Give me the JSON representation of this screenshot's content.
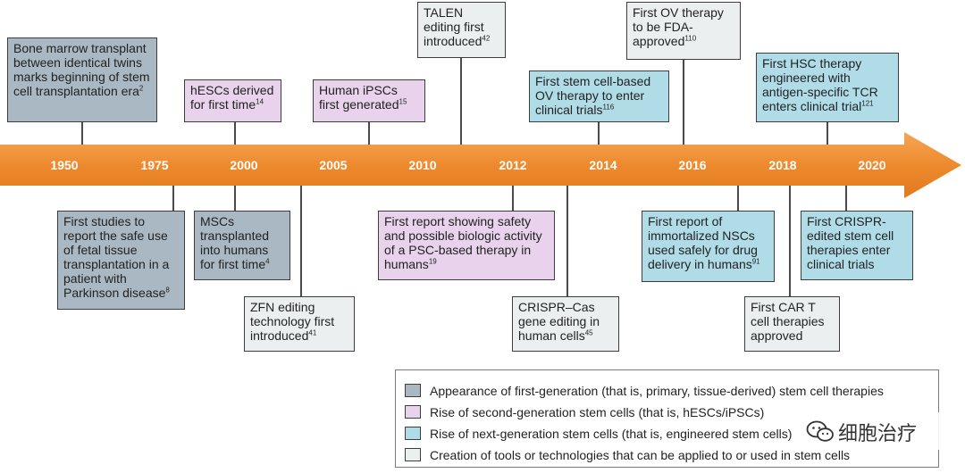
{
  "timeline": {
    "years": [
      "1950",
      "1975",
      "2000",
      "2005",
      "2010",
      "2012",
      "2014",
      "2016",
      "2018",
      "2020"
    ],
    "arrow_color": "#ee8a2e"
  },
  "events_above": [
    {
      "text": "Bone marrow transplant between identical twins marks beginning of stem cell transplantation era",
      "ref": "2",
      "category": "first-generation"
    },
    {
      "text": "hESCs derived for first time",
      "ref": "14",
      "category": "second-generation"
    },
    {
      "text": "Human iPSCs first generated",
      "ref": "15",
      "category": "second-generation"
    },
    {
      "text": "TALEN editing first introduced",
      "ref": "42",
      "category": "tools"
    },
    {
      "text": "First stem cell-based OV therapy to enter clinical trials",
      "ref": "116",
      "category": "next-generation"
    },
    {
      "text": "First OV therapy to be FDA-approved",
      "ref": "110",
      "category": "tools"
    },
    {
      "text": "First HSC therapy engineered with antigen-specific TCR enters clinical trial",
      "ref": "121",
      "category": "next-generation"
    }
  ],
  "events_below": [
    {
      "text": "First studies to report the safe use of fetal tissue transplantation in a patient with Parkinson disease",
      "ref": "8",
      "category": "first-generation"
    },
    {
      "text": "MSCs transplanted into humans for first time",
      "ref": "4",
      "category": "first-generation"
    },
    {
      "text": "ZFN editing technology first introduced",
      "ref": "41",
      "category": "tools"
    },
    {
      "text": "First report showing safety and possible biologic activity of a PSC-based therapy in humans",
      "ref": "19",
      "category": "second-generation"
    },
    {
      "text": "CRISPR–Cas gene editing in human cells",
      "ref": "45",
      "category": "tools"
    },
    {
      "text": "First report of immortalized NSCs used safely for drug delivery in humans",
      "ref": "91",
      "category": "next-generation"
    },
    {
      "text": "First CAR T cell therapies approved",
      "ref": "",
      "category": "tools"
    },
    {
      "text": "First CRISPR-edited stem cell therapies enter clinical trials",
      "ref": "",
      "category": "next-generation"
    }
  ],
  "legend": [
    {
      "label": "Appearance of first-generation (that is, primary, tissue-derived) stem cell therapies",
      "color": "#a9b8c3"
    },
    {
      "label": "Rise of second-generation stem cells (that is, hESCs/iPSCs)",
      "color": "#e8d2ec"
    },
    {
      "label": "Rise of next-generation stem cells (that is, engineered stem cells)",
      "color": "#b0dce8"
    },
    {
      "label": "Creation of tools or technologies that can be applied to or used in stem cells",
      "color": "#eceff0"
    }
  ],
  "watermark": {
    "text": "细胞治疗",
    "icon": "wechat-icon"
  }
}
